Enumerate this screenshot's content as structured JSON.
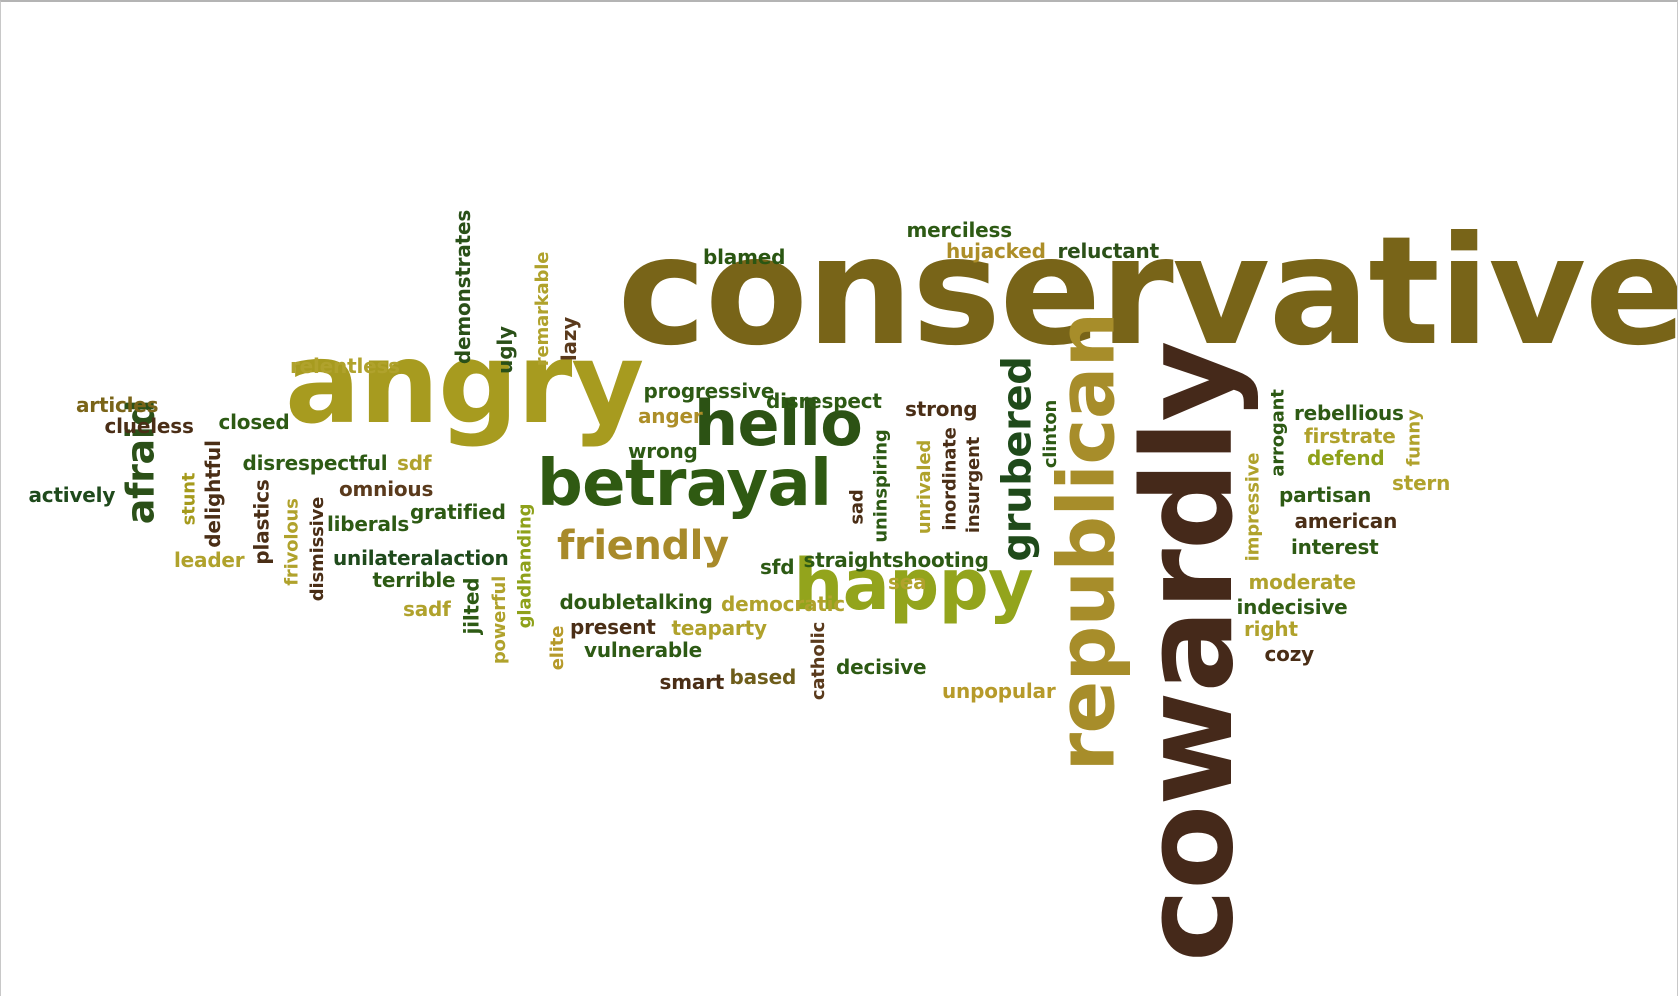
{
  "colors": [
    "#6e5d1a",
    "#a59a1c",
    "#2f5a10",
    "#4a2e16",
    "#8ea11a",
    "#b69a2a",
    "#1f4a1c"
  ],
  "words": [
    {
      "text": "conservative",
      "color": "#786418"
    },
    {
      "text": "cowardly",
      "color": "#45291a"
    },
    {
      "text": "angry",
      "color": "#a79b1f"
    },
    {
      "text": "republican",
      "color": "#a78d2a"
    },
    {
      "text": "betrayal",
      "color": "#2f5a12"
    },
    {
      "text": "happy",
      "color": "#93a41c"
    },
    {
      "text": "hello",
      "color": "#2c5214"
    },
    {
      "text": "grubered",
      "color": "#1f4a1a"
    },
    {
      "text": "friendly",
      "color": "#a88a2a"
    },
    {
      "text": "afraid",
      "color": "#2b5018"
    },
    {
      "text": "merciless",
      "color": "#2d5a14"
    },
    {
      "text": "hujacked",
      "color": "#ad8e28"
    },
    {
      "text": "reluctant",
      "color": "#2b5018"
    },
    {
      "text": "blamed",
      "color": "#2a5612"
    },
    {
      "text": "demonstrates",
      "color": "#2a5018"
    },
    {
      "text": "remarkable",
      "color": "#b0a22c"
    },
    {
      "text": "ugly",
      "color": "#2a5018"
    },
    {
      "text": "lazy",
      "color": "#5a3a1c"
    },
    {
      "text": "relentless",
      "color": "#b0a22c"
    },
    {
      "text": "articles",
      "color": "#7a6418"
    },
    {
      "text": "clueless",
      "color": "#4a2e16"
    },
    {
      "text": "closed",
      "color": "#2d5a14"
    },
    {
      "text": "progressive",
      "color": "#2d5a14"
    },
    {
      "text": "anger",
      "color": "#ad8e28"
    },
    {
      "text": "disrespect",
      "color": "#2d5a14"
    },
    {
      "text": "strong",
      "color": "#4a2e16"
    },
    {
      "text": "wrong",
      "color": "#2d5a14"
    },
    {
      "text": "actively",
      "color": "#1f4a1c"
    },
    {
      "text": "stunt",
      "color": "#a59a1c"
    },
    {
      "text": "delightful",
      "color": "#4a2e16"
    },
    {
      "text": "disrespectful",
      "color": "#2d5a14"
    },
    {
      "text": "sdf",
      "color": "#b0a22c"
    },
    {
      "text": "omnious",
      "color": "#5a3a1c"
    },
    {
      "text": "gratified",
      "color": "#2d5a14"
    },
    {
      "text": "liberals",
      "color": "#2d5a14"
    },
    {
      "text": "plastics",
      "color": "#4a2e16"
    },
    {
      "text": "frivolous",
      "color": "#b0a22c"
    },
    {
      "text": "dismissive",
      "color": "#4a2e16"
    },
    {
      "text": "leader",
      "color": "#b0a22c"
    },
    {
      "text": "unilateralaction",
      "color": "#1f4a1c"
    },
    {
      "text": "terrible",
      "color": "#2d5a14"
    },
    {
      "text": "sadf",
      "color": "#b0a22c"
    },
    {
      "text": "jilted",
      "color": "#2d5a14"
    },
    {
      "text": "powerful",
      "color": "#b0a22c"
    },
    {
      "text": "gladhanding",
      "color": "#8ea11a"
    },
    {
      "text": "elite",
      "color": "#b69a2a"
    },
    {
      "text": "doubletalking",
      "color": "#2d5a14"
    },
    {
      "text": "present",
      "color": "#4a2e16"
    },
    {
      "text": "teaparty",
      "color": "#b0a22c"
    },
    {
      "text": "vulnerable",
      "color": "#2d5a14"
    },
    {
      "text": "democratic",
      "color": "#b0a22c"
    },
    {
      "text": "smart",
      "color": "#4a2e16"
    },
    {
      "text": "based",
      "color": "#6e5d1a"
    },
    {
      "text": "catholic",
      "color": "#5a3a1c"
    },
    {
      "text": "decisive",
      "color": "#2d5a14"
    },
    {
      "text": "unpopular",
      "color": "#b69a2a"
    },
    {
      "text": "sfd",
      "color": "#2d5a14"
    },
    {
      "text": "straightshooting",
      "color": "#2d5a14"
    },
    {
      "text": "sea",
      "color": "#b0a22c"
    },
    {
      "text": "sad",
      "color": "#4a2e16"
    },
    {
      "text": "uninspiring",
      "color": "#2d5a14"
    },
    {
      "text": "unrivaled",
      "color": "#b0a22c"
    },
    {
      "text": "inordinate",
      "color": "#4a2e16"
    },
    {
      "text": "insurgent",
      "color": "#4a2e16"
    },
    {
      "text": "clinton",
      "color": "#2d5a14"
    },
    {
      "text": "impressive",
      "color": "#b0a22c"
    },
    {
      "text": "arrogant",
      "color": "#2d5a14"
    },
    {
      "text": "rebellious",
      "color": "#2d5a14"
    },
    {
      "text": "firstrate",
      "color": "#b0a22c"
    },
    {
      "text": "funny",
      "color": "#b0a22c"
    },
    {
      "text": "defend",
      "color": "#8ea11a"
    },
    {
      "text": "stern",
      "color": "#b0a22c"
    },
    {
      "text": "partisan",
      "color": "#2d5a14"
    },
    {
      "text": "american",
      "color": "#4a2e16"
    },
    {
      "text": "interest",
      "color": "#2d5a14"
    },
    {
      "text": "moderate",
      "color": "#b0a22c"
    },
    {
      "text": "indecisive",
      "color": "#2d5a14"
    },
    {
      "text": "right",
      "color": "#b0a22c"
    },
    {
      "text": "cozy",
      "color": "#4a2e16"
    }
  ]
}
